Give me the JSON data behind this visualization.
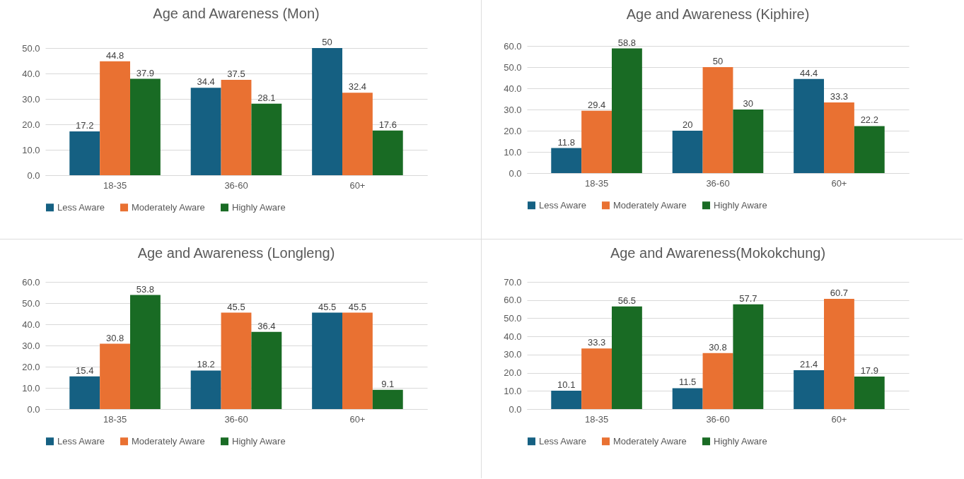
{
  "chart_data": [
    {
      "type": "bar",
      "title": "Age and Awareness (Mon)",
      "categories": [
        "18-35",
        "36-60",
        "60+"
      ],
      "series": [
        {
          "name": "Less Aware",
          "color": "#156082",
          "values": [
            17.2,
            34.4,
            50
          ]
        },
        {
          "name": "Moderately Aware",
          "color": "#e97132",
          "values": [
            44.8,
            37.5,
            32.4
          ]
        },
        {
          "name": "Highly Aware",
          "color": "#196b24",
          "values": [
            37.9,
            28.1,
            17.6
          ]
        }
      ],
      "ylim": [
        0,
        50
      ],
      "yticks": [
        {
          "value": 0,
          "label": "0.0"
        },
        {
          "value": 10,
          "label": "10.0"
        },
        {
          "value": 20,
          "label": "20.0"
        },
        {
          "value": 30,
          "label": "30.0"
        },
        {
          "value": 40,
          "label": "40.0"
        },
        {
          "value": 50,
          "label": "50.0"
        }
      ],
      "grid": "y",
      "legend": "bottom",
      "data_labels": true
    },
    {
      "type": "bar",
      "title": "Age and Awareness (Kiphire)",
      "categories": [
        "18-35",
        "36-60",
        "60+"
      ],
      "series": [
        {
          "name": "Less Aware",
          "color": "#156082",
          "values": [
            11.8,
            20,
            44.4
          ]
        },
        {
          "name": "Moderately Aware",
          "color": "#e97132",
          "values": [
            29.4,
            50,
            33.3
          ]
        },
        {
          "name": "Highly Aware",
          "color": "#196b24",
          "values": [
            58.8,
            30,
            22.2
          ]
        }
      ],
      "ylim": [
        0,
        60
      ],
      "yticks": [
        {
          "value": 0,
          "label": "0.0"
        },
        {
          "value": 10,
          "label": "10.0"
        },
        {
          "value": 20,
          "label": "20.0"
        },
        {
          "value": 30,
          "label": "30.0"
        },
        {
          "value": 40,
          "label": "40.0"
        },
        {
          "value": 50,
          "label": "50.0"
        },
        {
          "value": 60,
          "label": "60.0"
        }
      ],
      "grid": "y",
      "legend": "bottom",
      "data_labels": true
    },
    {
      "type": "bar",
      "title": "Age and Awareness (Longleng)",
      "categories": [
        "18-35",
        "36-60",
        "60+"
      ],
      "series": [
        {
          "name": "Less Aware",
          "color": "#156082",
          "values": [
            15.4,
            18.2,
            45.5
          ]
        },
        {
          "name": "Moderately Aware",
          "color": "#e97132",
          "values": [
            30.8,
            45.5,
            45.5
          ]
        },
        {
          "name": "Highly Aware",
          "color": "#196b24",
          "values": [
            53.8,
            36.4,
            9.1
          ]
        }
      ],
      "ylim": [
        0,
        60
      ],
      "yticks": [
        {
          "value": 0,
          "label": "0.0"
        },
        {
          "value": 10,
          "label": "10.0"
        },
        {
          "value": 20,
          "label": "20.0"
        },
        {
          "value": 30,
          "label": "30.0"
        },
        {
          "value": 40,
          "label": "40.0"
        },
        {
          "value": 50,
          "label": "50.0"
        },
        {
          "value": 60,
          "label": "60.0"
        }
      ],
      "grid": "y",
      "legend": "bottom",
      "data_labels": true
    },
    {
      "type": "bar",
      "title": "Age and Awareness(Mokokchung)",
      "categories": [
        "18-35",
        "36-60",
        "60+"
      ],
      "series": [
        {
          "name": "Less Aware",
          "color": "#156082",
          "values": [
            10.1,
            11.5,
            21.4
          ]
        },
        {
          "name": "Moderately Aware",
          "color": "#e97132",
          "values": [
            33.3,
            30.8,
            60.7
          ]
        },
        {
          "name": "Highly Aware",
          "color": "#196b24",
          "values": [
            56.5,
            57.7,
            17.9
          ]
        }
      ],
      "ylim": [
        0,
        70
      ],
      "yticks": [
        {
          "value": 0,
          "label": "0.0"
        },
        {
          "value": 10,
          "label": "10.0"
        },
        {
          "value": 20,
          "label": "20.0"
        },
        {
          "value": 30,
          "label": "30.0"
        },
        {
          "value": 40,
          "label": "40.0"
        },
        {
          "value": 50,
          "label": "50.0"
        },
        {
          "value": 60,
          "label": "60.0"
        },
        {
          "value": 70,
          "label": "70.0"
        }
      ],
      "grid": "y",
      "legend": "bottom",
      "data_labels": true
    }
  ]
}
